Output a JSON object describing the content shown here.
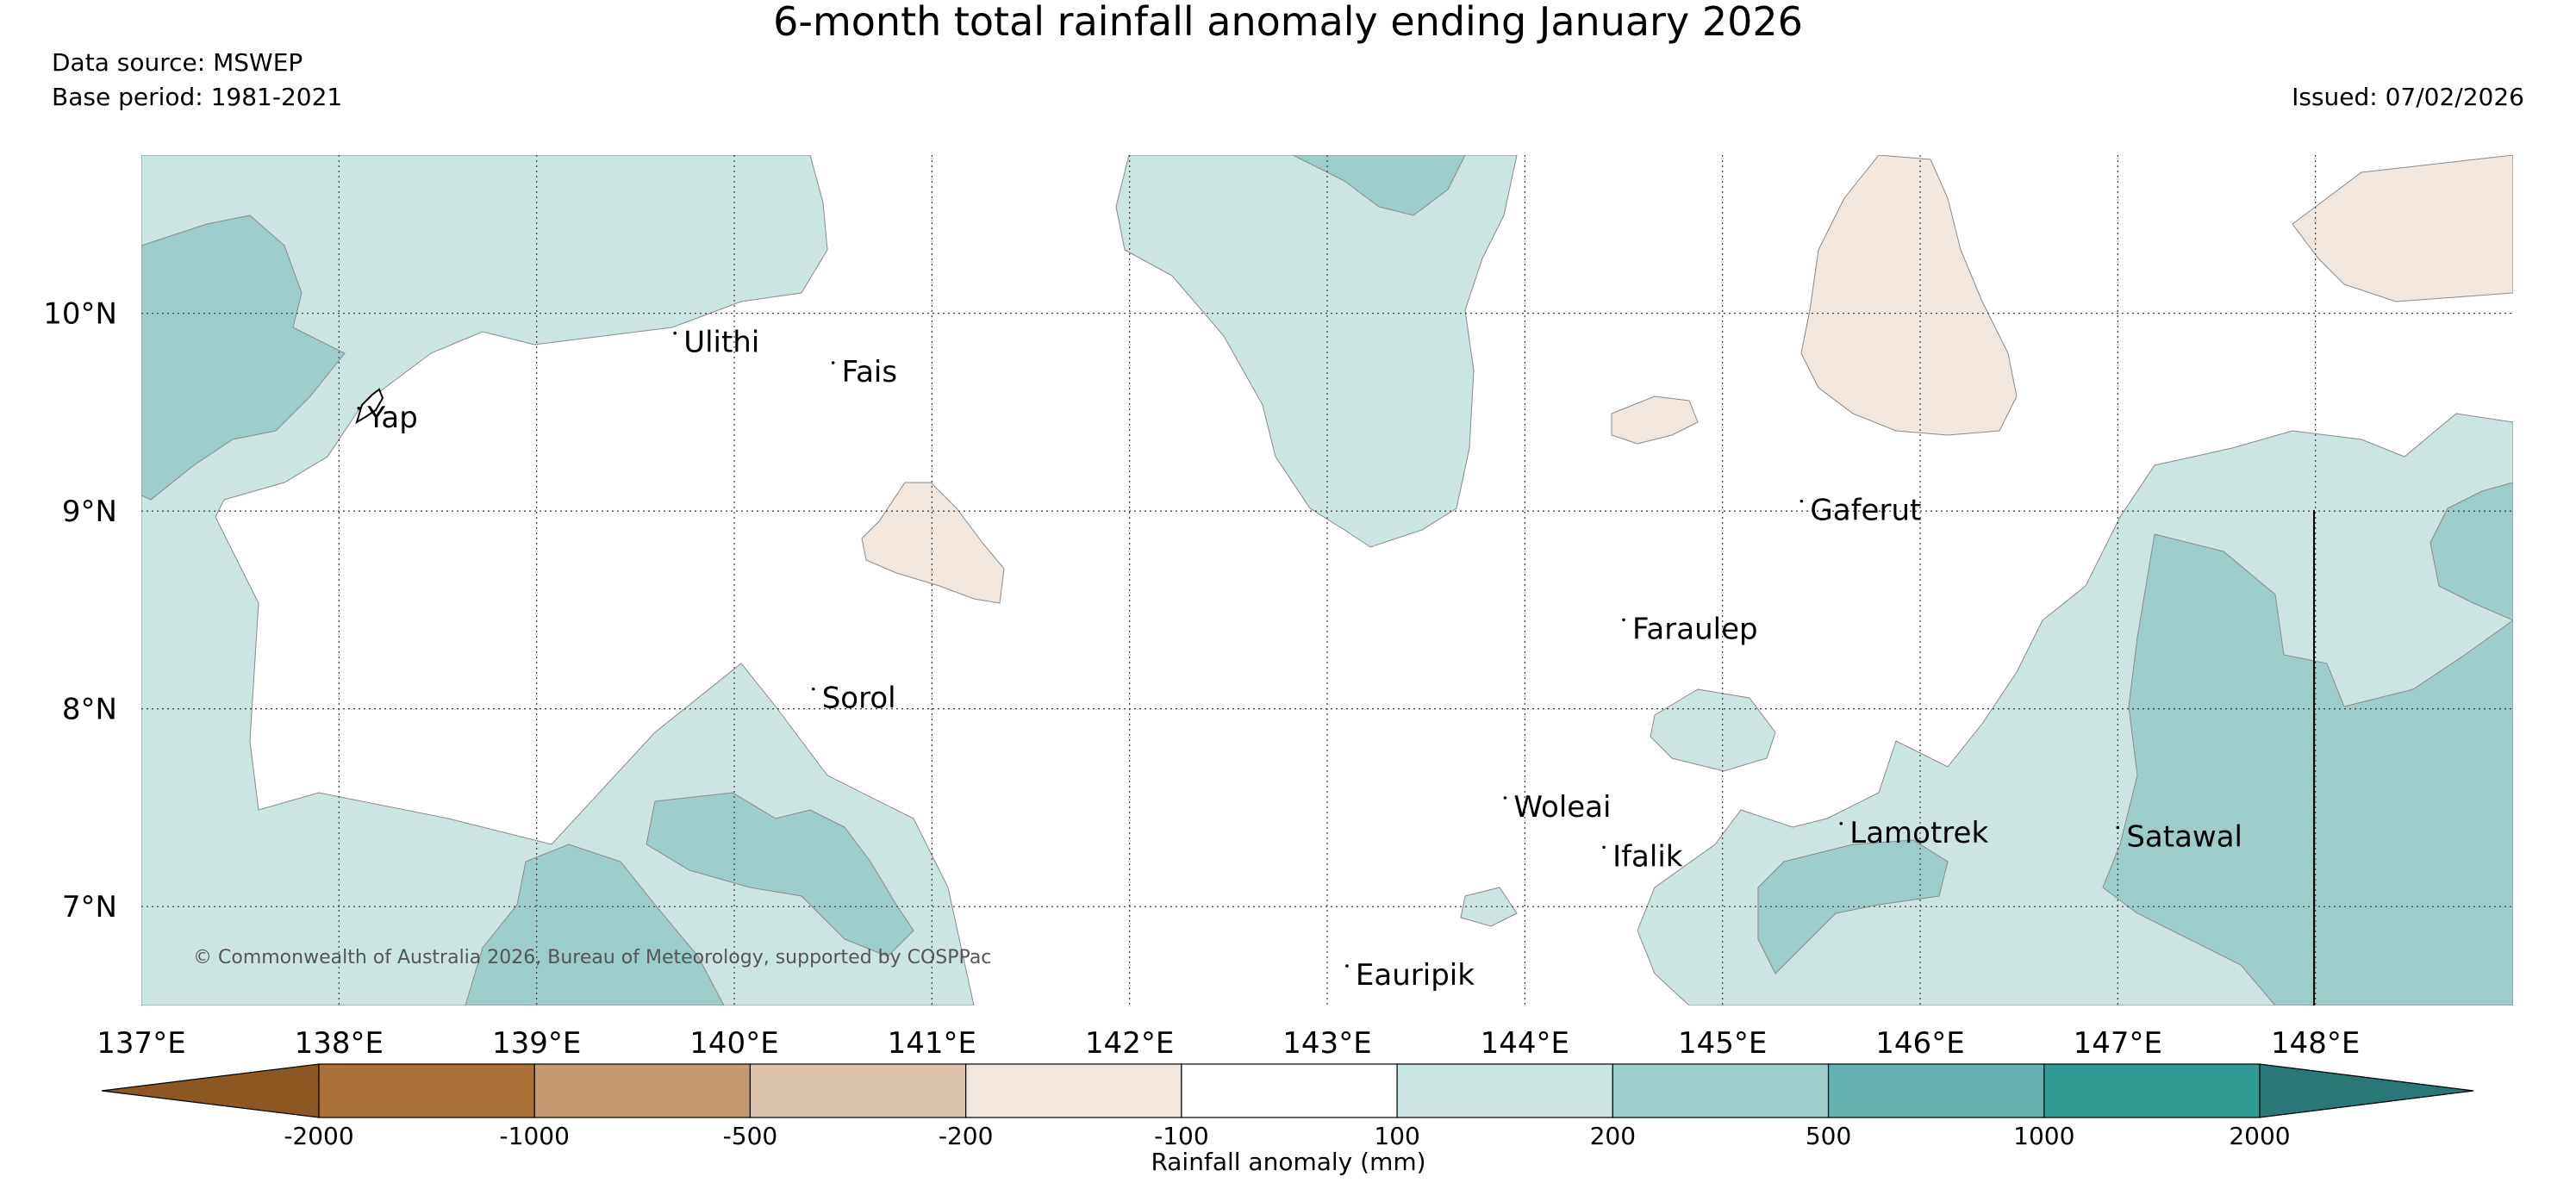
{
  "title": "6-month total rainfall anomaly ending January 2026",
  "data_source": "Data source: MSWEP",
  "base_period": "Base period: 1981-2021",
  "issued": "Issued: 07/02/2026",
  "copyright": "© Commonwealth of Australia 2026, Bureau of Meteorology, supported by COSPPac",
  "map": {
    "lon_range": [
      137,
      149
    ],
    "lat_range": [
      6.5,
      10.8
    ],
    "lon_ticks": [
      "137°E",
      "138°E",
      "139°E",
      "140°E",
      "141°E",
      "142°E",
      "143°E",
      "144°E",
      "145°E",
      "146°E",
      "147°E",
      "148°E"
    ],
    "lat_ticks": [
      "10°N",
      "9°N",
      "8°N",
      "7°N"
    ],
    "grid": "dotted"
  },
  "places": [
    {
      "name": "Ulithi",
      "lon": 139.7,
      "lat": 9.9
    },
    {
      "name": "Fais",
      "lon": 140.5,
      "lat": 9.75
    },
    {
      "name": "Yap",
      "lon": 138.1,
      "lat": 9.52
    },
    {
      "name": "Gaferut",
      "lon": 145.4,
      "lat": 9.05
    },
    {
      "name": "Faraulep",
      "lon": 144.5,
      "lat": 8.45
    },
    {
      "name": "Sorol",
      "lon": 140.4,
      "lat": 8.1
    },
    {
      "name": "Woleai",
      "lon": 143.9,
      "lat": 7.55
    },
    {
      "name": "Lamotrek",
      "lon": 145.6,
      "lat": 7.42
    },
    {
      "name": "Satawal",
      "lon": 147.0,
      "lat": 7.4
    },
    {
      "name": "Ifalik",
      "lon": 144.4,
      "lat": 7.3
    },
    {
      "name": "Eauripik",
      "lon": 143.1,
      "lat": 6.7
    }
  ],
  "colorbar": {
    "label": "Rainfall anomaly (mm)",
    "ticks": [
      "-2000",
      "-1000",
      "-500",
      "-200",
      "-100",
      "100",
      "200",
      "500",
      "1000",
      "2000"
    ],
    "colors": [
      "#8d5723",
      "#ab7138",
      "#c49a6e",
      "#dcc3a9",
      "#f1e7de",
      "#ffffff",
      "#cbe5e3",
      "#9ccdcb",
      "#64b2b0",
      "#319a95",
      "#277876"
    ]
  }
}
